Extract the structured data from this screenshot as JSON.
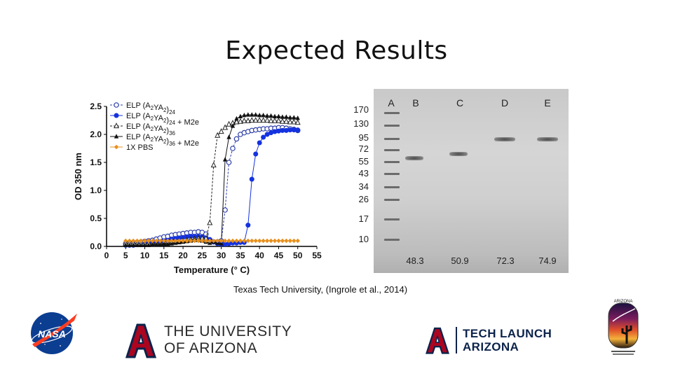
{
  "slide": {
    "title": "Expected Results",
    "citation": "Texas Tech University, (Ingrole et al., 2014)"
  },
  "chart_data": {
    "type": "scatter",
    "xlabel": "Temperature (° C)",
    "ylabel": "OD 350 nm",
    "xlim": [
      0,
      55
    ],
    "ylim": [
      0,
      2.5
    ],
    "xticks": [
      "0",
      "5",
      "10",
      "15",
      "20",
      "25",
      "30",
      "35",
      "40",
      "45",
      "50",
      "55"
    ],
    "yticks": [
      "0.0",
      "0.5",
      "1.0",
      "1.5",
      "2.0",
      "2.5"
    ],
    "legend_position": "top-left",
    "x": [
      5,
      6,
      7,
      8,
      9,
      10,
      11,
      12,
      13,
      14,
      15,
      16,
      17,
      18,
      19,
      20,
      21,
      22,
      23,
      24,
      25,
      26,
      27,
      28,
      29,
      30,
      31,
      32,
      33,
      34,
      35,
      36,
      37,
      38,
      39,
      40,
      41,
      42,
      43,
      44,
      45,
      46,
      47,
      48,
      49,
      50
    ],
    "series": [
      {
        "name": "ELP (A2YA2)24",
        "name_base": "ELP (A",
        "name_sub1": "2",
        "name_mid": "YA",
        "name_sub2": "2",
        "name_close": ")",
        "name_sub3": "24",
        "name_tail": "",
        "marker": "open-circle",
        "color": "#2d3ea8",
        "values": [
          0.05,
          0.06,
          0.06,
          0.07,
          0.08,
          0.09,
          0.1,
          0.11,
          0.13,
          0.15,
          0.17,
          0.18,
          0.2,
          0.21,
          0.22,
          0.23,
          0.24,
          0.25,
          0.25,
          0.26,
          0.25,
          0.22,
          0.12,
          0.08,
          0.08,
          0.1,
          0.65,
          1.5,
          1.75,
          1.92,
          2.0,
          2.03,
          2.05,
          2.07,
          2.08,
          2.09,
          2.1,
          2.1,
          2.11,
          2.11,
          2.12,
          2.12,
          2.11,
          2.1,
          2.09,
          2.07
        ]
      },
      {
        "name": "ELP (A2YA2)24 + M2e",
        "name_base": "ELP (A",
        "name_sub1": "2",
        "name_mid": "YA",
        "name_sub2": "2",
        "name_close": ")",
        "name_sub3": "24",
        "name_tail": " + M2e",
        "marker": "filled-circle",
        "color": "#1432e0",
        "values": [
          0.02,
          0.02,
          0.02,
          0.03,
          0.03,
          0.04,
          0.05,
          0.06,
          0.07,
          0.08,
          0.1,
          0.11,
          0.13,
          0.14,
          0.15,
          0.16,
          0.17,
          0.18,
          0.18,
          0.18,
          0.17,
          0.15,
          0.12,
          0.08,
          0.05,
          0.04,
          0.04,
          0.05,
          0.06,
          0.06,
          0.07,
          0.07,
          0.38,
          1.2,
          1.65,
          1.85,
          1.95,
          2.0,
          2.03,
          2.05,
          2.06,
          2.07,
          2.07,
          2.08,
          2.08,
          2.08
        ]
      },
      {
        "name": "ELP (A2YA2)36",
        "name_base": "ELP (A",
        "name_sub1": "2",
        "name_mid": "YA",
        "name_sub2": "2",
        "name_close": ")",
        "name_sub3": "36",
        "name_tail": "",
        "marker": "open-triangle",
        "color": "#222222",
        "values": [
          0.05,
          0.05,
          0.05,
          0.05,
          0.05,
          0.05,
          0.05,
          0.05,
          0.05,
          0.05,
          0.05,
          0.06,
          0.07,
          0.08,
          0.09,
          0.1,
          0.11,
          0.12,
          0.13,
          0.14,
          0.14,
          0.14,
          0.42,
          1.45,
          1.98,
          2.05,
          2.12,
          2.18,
          2.2,
          2.22,
          2.23,
          2.24,
          2.24,
          2.25,
          2.25,
          2.25,
          2.25,
          2.25,
          2.24,
          2.24,
          2.24,
          2.23,
          2.23,
          2.22,
          2.22,
          2.21
        ]
      },
      {
        "name": "ELP (A2YA2)36 + M2e",
        "name_base": "ELP (A",
        "name_sub1": "2",
        "name_mid": "YA",
        "name_sub2": "2",
        "name_close": ")",
        "name_sub3": "36",
        "name_tail": " + M2e",
        "marker": "filled-triangle",
        "color": "#111111",
        "values": [
          0.02,
          0.02,
          0.02,
          0.02,
          0.02,
          0.02,
          0.02,
          0.03,
          0.03,
          0.03,
          0.04,
          0.04,
          0.05,
          0.06,
          0.07,
          0.08,
          0.09,
          0.1,
          0.11,
          0.11,
          0.1,
          0.08,
          0.06,
          0.08,
          0.06,
          0.05,
          1.55,
          1.95,
          2.15,
          2.28,
          2.32,
          2.34,
          2.35,
          2.35,
          2.35,
          2.34,
          2.34,
          2.33,
          2.33,
          2.32,
          2.32,
          2.31,
          2.31,
          2.3,
          2.3,
          2.29
        ]
      },
      {
        "name": "1X PBS",
        "name_base": "1X PBS",
        "name_sub1": "",
        "name_mid": "",
        "name_sub2": "",
        "name_close": "",
        "name_sub3": "",
        "name_tail": "",
        "marker": "filled-diamond",
        "color": "#e8901c",
        "values": [
          0.1,
          0.1,
          0.1,
          0.1,
          0.1,
          0.1,
          0.1,
          0.1,
          0.1,
          0.1,
          0.1,
          0.1,
          0.1,
          0.1,
          0.1,
          0.1,
          0.1,
          0.1,
          0.1,
          0.1,
          0.1,
          0.1,
          0.1,
          0.1,
          0.1,
          0.1,
          0.1,
          0.1,
          0.1,
          0.1,
          0.1,
          0.1,
          0.1,
          0.1,
          0.1,
          0.1,
          0.1,
          0.1,
          0.1,
          0.1,
          0.1,
          0.1,
          0.1,
          0.1,
          0.1,
          0.1
        ]
      }
    ]
  },
  "gel": {
    "lanes": [
      "A",
      "B",
      "C",
      "D",
      "E"
    ],
    "mw_markers": [
      "170",
      "130",
      "95",
      "72",
      "55",
      "43",
      "34",
      "26",
      "17",
      "10"
    ],
    "tm_values": [
      "48.3",
      "50.9",
      "72.3",
      "74.9"
    ]
  },
  "logos": {
    "nasa": "NASA",
    "ua_line1": "THE UNIVERSITY",
    "ua_line2": "OF ARIZONA",
    "tla_line1": "TECH LAUNCH",
    "tla_line2": "ARIZONA",
    "sg_top": "ARIZONA",
    "colors": {
      "ua_red": "#ab0520",
      "ua_navy": "#0c234b",
      "nasa_blue": "#0b3d91",
      "nasa_red": "#fc3d21"
    }
  }
}
